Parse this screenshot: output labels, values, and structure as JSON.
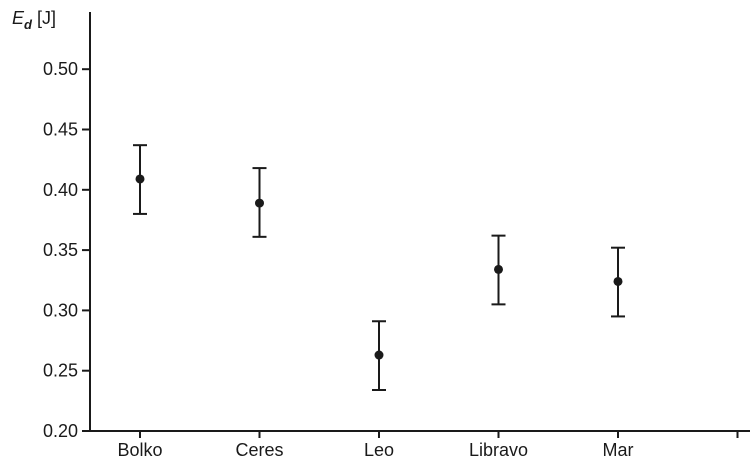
{
  "chart_data": {
    "type": "scatter",
    "title": "",
    "xlabel": "",
    "ylabel": {
      "symbol": "E",
      "subscript": "d",
      "unit": "[J]"
    },
    "categories": [
      "Bolko",
      "Ceres",
      "Leo",
      "Libravo",
      "Mar"
    ],
    "series": [
      {
        "mean": [
          0.409,
          0.389,
          0.263,
          0.334,
          0.324
        ],
        "lower": [
          0.38,
          0.361,
          0.234,
          0.305,
          0.295
        ],
        "upper": [
          0.437,
          0.418,
          0.291,
          0.362,
          0.352
        ]
      }
    ],
    "ylim": [
      0.2,
      0.52
    ],
    "yticks": [
      "0.20",
      "0.25",
      "0.30",
      "0.35",
      "0.40",
      "0.45",
      "0.50"
    ],
    "grid": false,
    "legend": "none",
    "colors": {
      "marks": "#1a1a1a",
      "axis": "#1a1a1a"
    }
  }
}
